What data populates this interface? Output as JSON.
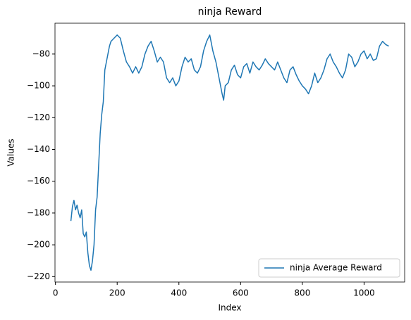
{
  "chart_data": {
    "type": "line",
    "title": "ninja Reward",
    "xlabel": "Index",
    "ylabel": "Values",
    "x": [
      50,
      55,
      60,
      65,
      70,
      75,
      80,
      85,
      90,
      95,
      100,
      105,
      110,
      115,
      120,
      125,
      130,
      135,
      140,
      145,
      150,
      155,
      160,
      165,
      170,
      175,
      180,
      190,
      200,
      210,
      220,
      230,
      240,
      250,
      260,
      270,
      280,
      290,
      300,
      310,
      320,
      330,
      340,
      350,
      360,
      370,
      380,
      390,
      400,
      410,
      420,
      430,
      440,
      450,
      460,
      470,
      480,
      490,
      500,
      510,
      520,
      530,
      540,
      545,
      550,
      560,
      570,
      580,
      590,
      600,
      610,
      620,
      630,
      640,
      650,
      660,
      670,
      680,
      690,
      700,
      710,
      720,
      730,
      740,
      750,
      760,
      770,
      780,
      790,
      800,
      810,
      820,
      830,
      840,
      850,
      860,
      870,
      880,
      890,
      900,
      910,
      920,
      930,
      940,
      950,
      960,
      970,
      980,
      990,
      1000,
      1010,
      1020,
      1030,
      1040,
      1050,
      1060,
      1070,
      1080
    ],
    "series": [
      {
        "name": "ninja Average Reward",
        "color": "#1f77b4",
        "values": [
          -185,
          -176,
          -172,
          -178,
          -175,
          -180,
          -183,
          -178,
          -193,
          -195,
          -192,
          -205,
          -213,
          -216,
          -210,
          -200,
          -178,
          -170,
          -150,
          -130,
          -118,
          -110,
          -90,
          -85,
          -80,
          -75,
          -72,
          -70,
          -68,
          -70,
          -78,
          -85,
          -88,
          -92,
          -88,
          -92,
          -88,
          -80,
          -75,
          -72,
          -78,
          -85,
          -82,
          -85,
          -95,
          -98,
          -95,
          -100,
          -97,
          -88,
          -82,
          -85,
          -83,
          -90,
          -92,
          -88,
          -78,
          -72,
          -68,
          -78,
          -85,
          -95,
          -105,
          -109,
          -100,
          -98,
          -90,
          -87,
          -93,
          -95,
          -88,
          -86,
          -92,
          -85,
          -88,
          -90,
          -87,
          -83,
          -86,
          -88,
          -90,
          -85,
          -90,
          -95,
          -98,
          -90,
          -88,
          -93,
          -97,
          -100,
          -102,
          -105,
          -100,
          -92,
          -98,
          -95,
          -90,
          -83,
          -80,
          -85,
          -88,
          -92,
          -95,
          -90,
          -80,
          -82,
          -88,
          -85,
          -80,
          -78,
          -83,
          -80,
          -84,
          -83,
          -75,
          -72,
          -74,
          -75
        ]
      }
    ],
    "xlim": [
      -1.5,
      1131.5
    ],
    "ylim": [
      -223.4,
      -60.6
    ],
    "xticks": [
      0,
      200,
      400,
      600,
      800,
      1000
    ],
    "yticks": [
      {
        "value": -220,
        "label": "−220"
      },
      {
        "value": -200,
        "label": "−200"
      },
      {
        "value": -180,
        "label": "−180"
      },
      {
        "value": -160,
        "label": "−160"
      },
      {
        "value": -140,
        "label": "−140"
      },
      {
        "value": -120,
        "label": "−120"
      },
      {
        "value": -100,
        "label": "−100"
      },
      {
        "value": -80,
        "label": "−80"
      }
    ],
    "legend": "lower right",
    "grid": false
  }
}
